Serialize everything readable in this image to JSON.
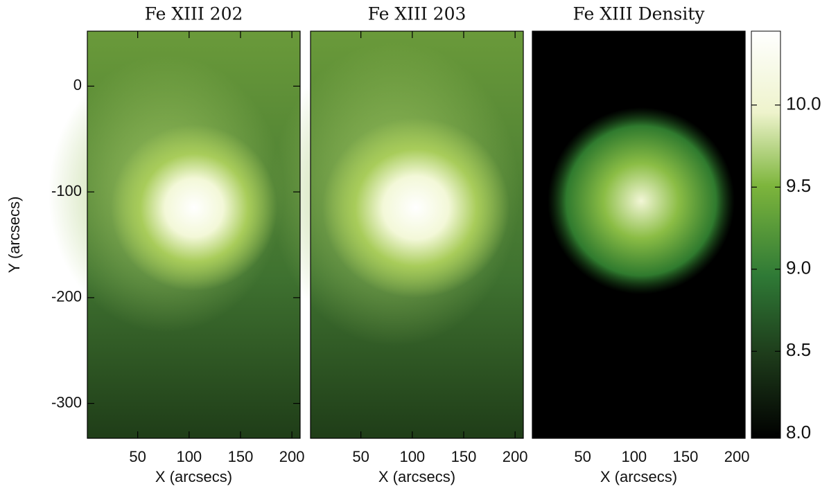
{
  "chart_data": [
    {
      "type": "image",
      "title": "Fe XIII 202",
      "xlabel": "X (arcsecs)",
      "ylabel": "Y (arcsecs)",
      "xlim": [
        1,
        208
      ],
      "ylim": [
        -333,
        52
      ],
      "xticks": [
        50,
        100,
        150,
        200
      ],
      "yticks": [
        0,
        -100,
        -200,
        -300
      ]
    },
    {
      "type": "image",
      "title": "Fe XIII 203",
      "xlabel": "X (arcsecs)",
      "xlim": [
        1,
        208
      ],
      "ylim": [
        -333,
        52
      ],
      "xticks": [
        50,
        100,
        150,
        200
      ]
    },
    {
      "type": "image",
      "title": "Fe XIII Density",
      "xlabel": "X (arcsecs)",
      "xlim": [
        1,
        208
      ],
      "ylim": [
        -333,
        52
      ],
      "xticks": [
        50,
        100,
        150,
        200
      ]
    },
    {
      "type": "colorbar",
      "ylim": [
        7.97,
        10.45
      ],
      "yticks": [
        {
          "value": 8,
          "label": "8.0"
        },
        8.5,
        {
          "value": 9,
          "label": "9.0"
        },
        9.5,
        {
          "value": 10,
          "label": "10.0"
        }
      ]
    }
  ]
}
